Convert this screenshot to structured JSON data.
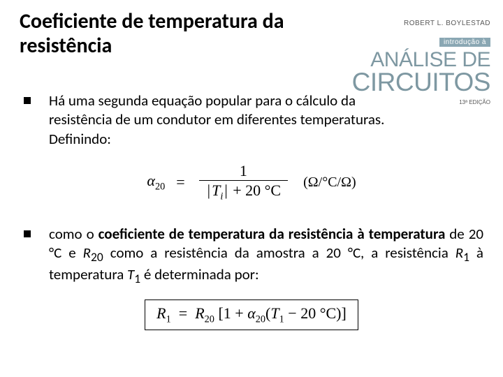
{
  "title": "Coeficiente de temperatura da resistência",
  "bullet1": "Há uma segunda equação popular para o cálculo da resistência de um condutor em diferentes temperaturas. Definindo:",
  "bullet2_html": "como o <b>coeficiente de temperatura da resistência à temperatura</b> de 20 °C e <i>R</i><sub>20</sub> como a resistência da amostra a 20 °C, a resistência <i>R</i><sub>1</sub> à temperatura <i>T</i><sub>1</sub> é determinada por:",
  "formula1": {
    "lhs_sym": "α",
    "lhs_sub": "20",
    "numerator": "1",
    "denom_abs_var": "T",
    "denom_abs_sub": "i",
    "denom_plus": " + 20 °C",
    "units": "(Ω/°C/Ω)"
  },
  "formula2": {
    "R": "R",
    "sub1": "1",
    "sub20": "20",
    "alpha": "α",
    "T": "T",
    "minus20": " − 20 °C"
  },
  "cover": {
    "author": "ROBERT L. BOYLESTAD",
    "intro": "introdução à",
    "title_l1": "ANÁLISE DE",
    "title_l2": "CIRCUITOS",
    "edition": "13ª EDIÇÃO"
  },
  "colors": {
    "text": "#000000",
    "cover_accent": "#7e98a2",
    "cover_badge_bg": "#8aa7b3",
    "cover_meta": "#575757",
    "background": "#ffffff"
  }
}
